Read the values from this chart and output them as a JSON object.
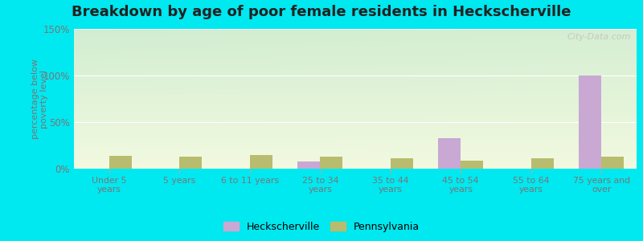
{
  "title": "Breakdown by age of poor female residents in Heckscherville",
  "ylabel": "percentage below\npoverty level",
  "categories": [
    "Under 5\nyears",
    "5 years",
    "6 to 11 years",
    "25 to 34\nyears",
    "35 to 44\nyears",
    "45 to 54\nyears",
    "55 to 64\nyears",
    "75 years and\nover"
  ],
  "heckscherville": [
    0,
    0,
    0,
    8,
    0,
    33,
    0,
    100
  ],
  "pennsylvania": [
    14,
    13,
    15,
    13,
    11,
    9,
    11,
    13
  ],
  "heck_color": "#c9a8d4",
  "pa_color": "#b8bc6e",
  "ylim": [
    0,
    150
  ],
  "yticks": [
    0,
    50,
    100,
    150
  ],
  "ytick_labels": [
    "0%",
    "50%",
    "100%",
    "150%"
  ],
  "title_fontsize": 13,
  "outer_bg_color": "#00e8f0",
  "watermark": "City-Data.com",
  "grid_color": "#ffffff",
  "tick_color": "#888888",
  "label_color": "#777777"
}
